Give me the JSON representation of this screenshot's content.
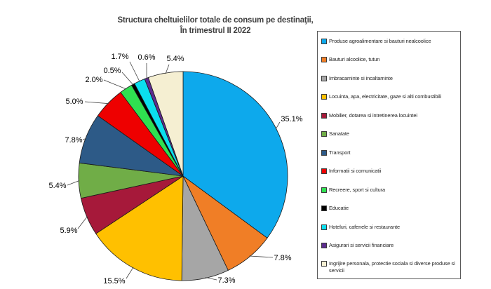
{
  "chart_data": {
    "type": "pie",
    "title": "Structura cheltuielilor totale de consum pe destinaţii,",
    "subtitle": "În trimestrul II 2022",
    "unit": "%",
    "start_angle_deg": 0,
    "direction": "clockwise",
    "legend_position": "right",
    "data_labels": "outside-with-leader-lines",
    "slices": [
      {
        "label": "Produse agroalimentare si bauturi nealcoolice",
        "value": 35.1,
        "display": "35.1%",
        "color": "#0DA9EC"
      },
      {
        "label": "Bauturi alcoolice, tutun",
        "value": 7.8,
        "display": "7.8%",
        "color": "#F07E26"
      },
      {
        "label": "Imbracaminte si incaltaminte",
        "value": 7.3,
        "display": "7.3%",
        "color": "#A6A6A6"
      },
      {
        "label": "Locuinta, apa, electricitate, gaze si alti combustibili",
        "value": 15.5,
        "display": "15.5%",
        "color": "#FFC000"
      },
      {
        "label": "Mobilier, dotarea si intretinerea locuintei",
        "value": 5.9,
        "display": "5.9%",
        "color": "#A6193A"
      },
      {
        "label": "Sanatate",
        "value": 5.4,
        "display": "5.4%",
        "color": "#70AD47"
      },
      {
        "label": "Transport",
        "value": 7.8,
        "display": "7.8%",
        "color": "#2D5A87"
      },
      {
        "label": "Informatii si comunicatii",
        "value": 5.0,
        "display": "5.0%",
        "color": "#EE0000"
      },
      {
        "label": "Recreere, sport si cultura",
        "value": 2.0,
        "display": "2.0%",
        "color": "#2FE050"
      },
      {
        "label": "Educatie",
        "value": 0.5,
        "display": "0.5%",
        "color": "#000000"
      },
      {
        "label": "Hoteluri, cafenele si restaurante",
        "value": 1.7,
        "display": "1.7%",
        "color": "#0BDEEE"
      },
      {
        "label": "Asigurari si servicii financiare",
        "value": 0.6,
        "display": "0.6%",
        "color": "#5C2C8E"
      },
      {
        "label": "Ingrijire personala, protectie sociala si diverse produse si servicii",
        "value": 5.4,
        "display": "5.4%",
        "color": "#F5EFD2"
      }
    ]
  }
}
